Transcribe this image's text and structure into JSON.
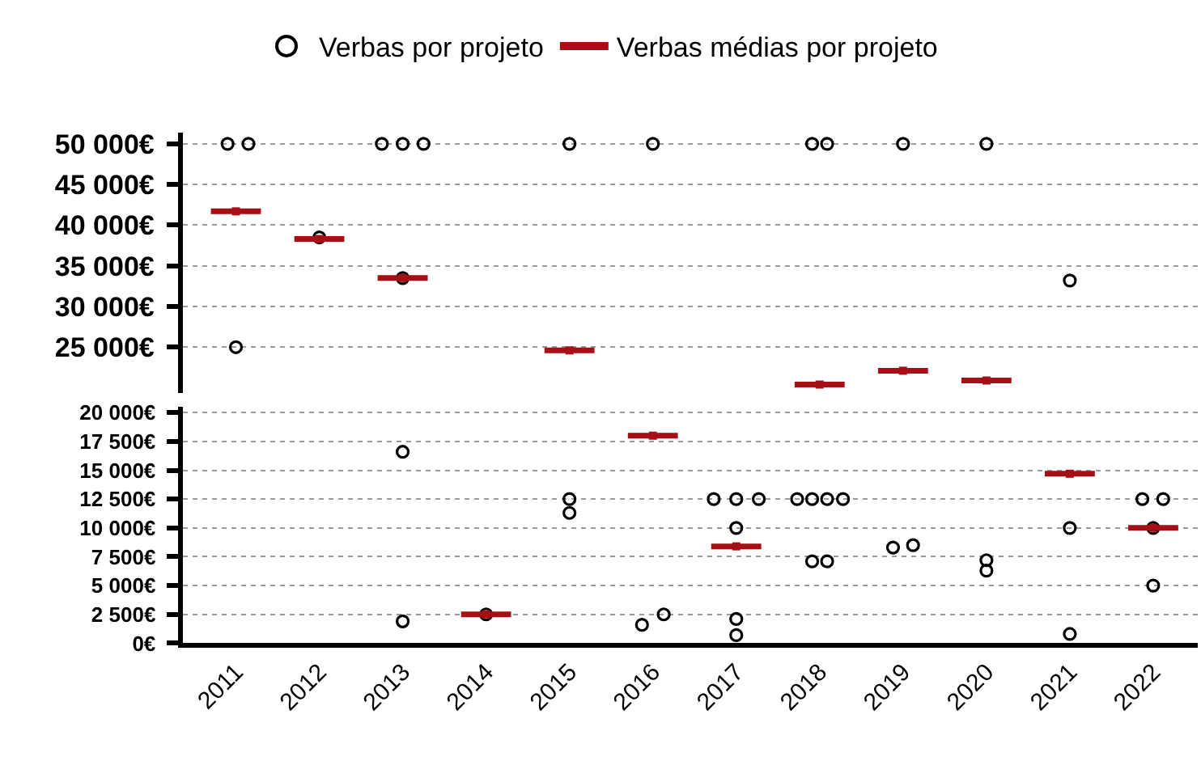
{
  "chart_data": [
    {
      "type": "scatter",
      "legend": "top",
      "grid": "y",
      "tick_labels": "y",
      "xlim": [
        2010.36,
        2022.53
      ],
      "xticks": [
        2011,
        2012,
        2013,
        2014,
        2015,
        2016,
        2017,
        2018,
        2019,
        2020,
        2021,
        2022
      ],
      "ylim": [
        19400,
        51400
      ],
      "yticks": [
        {
          "value": 25000,
          "label": "25 000€"
        },
        {
          "value": 30000,
          "label": "30 000€"
        },
        {
          "value": 35000,
          "label": "35 000€"
        },
        {
          "value": 40000,
          "label": "40 000€"
        },
        {
          "value": 45000,
          "label": "45 000€"
        },
        {
          "value": 50000,
          "label": "50 000€"
        }
      ],
      "series": [
        {
          "name": "Verbas por projeto",
          "color": "#000000",
          "marker": "circle",
          "x": [
            2010.9,
            2011.15,
            2011,
            2012,
            2012.75,
            2013,
            2013.25,
            2013,
            2015,
            2016,
            2017.91,
            2018.09,
            2019,
            2020,
            2021
          ],
          "values": [
            50000,
            50000,
            25000,
            38500,
            50000,
            50000,
            50000,
            33500,
            50000,
            50000,
            50000,
            50000,
            50000,
            50000,
            33200
          ]
        },
        {
          "name": "Verbas médias por projeto",
          "color": "#a50f15",
          "marker": "square",
          "x": [
            2011,
            2012,
            2013,
            2015,
            2018,
            2019,
            2020
          ],
          "values": [
            41700,
            38300,
            33500,
            24600,
            20400,
            22100,
            20900
          ],
          "xerrors": [
            0.3,
            0.3,
            0.3,
            0.3,
            0.3,
            0.3,
            0.3
          ]
        }
      ]
    },
    {
      "type": "scatter",
      "grid": "y",
      "xlim": [
        2010.36,
        2022.53
      ],
      "xticks": [
        2011,
        2012,
        2013,
        2014,
        2015,
        2016,
        2017,
        2018,
        2019,
        2020,
        2021,
        2022
      ],
      "ylim": [
        0,
        20500
      ],
      "yticks": [
        {
          "value": 0,
          "label": "0€"
        },
        {
          "value": 2500,
          "label": "2 500€"
        },
        {
          "value": 5000,
          "label": "5 000€"
        },
        {
          "value": 7500,
          "label": "7 500€"
        },
        {
          "value": 10000,
          "label": "10 000€"
        },
        {
          "value": 12500,
          "label": "12 500€"
        },
        {
          "value": 15000,
          "label": "15 000€"
        },
        {
          "value": 17500,
          "label": "17 500€"
        },
        {
          "value": 20000,
          "label": "20 000€"
        }
      ],
      "series": [
        {
          "color": "#000000",
          "marker": "circle",
          "x": [
            2013,
            2013,
            2014,
            2015,
            2015,
            2015.87,
            2016.13,
            2016.73,
            2017,
            2017.27,
            2017,
            2017,
            2017,
            2017.73,
            2017.91,
            2018.09,
            2018.28,
            2017.91,
            2018.09,
            2018.88,
            2019.12,
            2020,
            2020,
            2021,
            2021,
            2021.87,
            2022.12,
            2022,
            2022
          ],
          "values": [
            16600,
            1900,
            2500,
            12500,
            11300,
            1600,
            2500,
            12500,
            12500,
            12500,
            10000,
            2100,
            700,
            12500,
            12500,
            12500,
            12500,
            7100,
            7100,
            8300,
            8500,
            7200,
            6300,
            10000,
            800,
            12500,
            12500,
            10000,
            5000
          ]
        },
        {
          "color": "#a50f15",
          "marker": "square",
          "x": [
            2014,
            2016,
            2017,
            2021,
            2022
          ],
          "values": [
            2500,
            18000,
            8400,
            14700,
            10000
          ],
          "xerrors": [
            0.3,
            0.3,
            0.3,
            0.3,
            0.3
          ]
        }
      ]
    }
  ]
}
